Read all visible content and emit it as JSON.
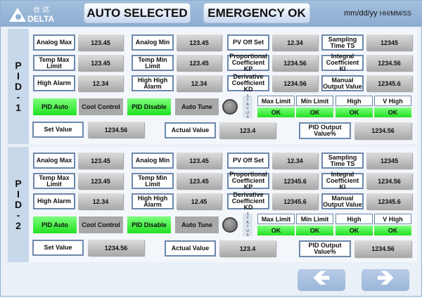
{
  "header": {
    "logo_text": "DELTA",
    "logo_chinese": "台达",
    "auto_button": "AUTO SELECTED",
    "emergency_button": "EMERGENCY OK",
    "date": "mm/dd/yy",
    "time": "HH/MM/SS"
  },
  "colors": {
    "header": "#8fb0d3",
    "green": "#33e833",
    "value_gray": "#b8b8b8",
    "border": "#6d88ad"
  },
  "panels": [
    {
      "title": [
        "P",
        "I",
        "D",
        "-",
        "1"
      ],
      "rows": [
        [
          [
            "Analog Max",
            "123.45"
          ],
          [
            "Analog Min",
            "123.45"
          ],
          [
            "PV Off Set",
            "12.34"
          ],
          [
            "Sampling Time TS",
            "12345"
          ]
        ],
        [
          [
            "Temp Max Limit",
            "123.45"
          ],
          [
            "Temp Min Limit",
            "123.45"
          ],
          [
            "Proportional Coefficient KP",
            "1234.56"
          ],
          [
            "Integral Coefficient KI",
            "1234.56"
          ]
        ],
        [
          [
            "High Alarm",
            "12.34"
          ],
          [
            "High High Alarm",
            "12.34"
          ],
          [
            "Derivative Coefficient KD",
            "1234.56"
          ],
          [
            "Manual Output Value",
            "12345.6"
          ]
        ]
      ],
      "buttons": {
        "pid_auto": "PID Auto",
        "cool_control": "Cool Control",
        "pid_disable": "PID Disable",
        "auto_tune": "Auto Tune"
      },
      "status_label": [
        "S",
        "T",
        "A",
        "T",
        "U",
        "S"
      ],
      "status": [
        {
          "label": "Max Limit",
          "value": "OK"
        },
        {
          "label": "Min Limit",
          "value": "OK"
        },
        {
          "label": "High",
          "value": "OK"
        },
        {
          "label": "V High",
          "value": "OK"
        }
      ],
      "set_value": {
        "label": "Set Value",
        "value": "1234.56"
      },
      "actual_value": {
        "label": "Actual Value",
        "value": "123.4"
      },
      "pid_output": {
        "label": "PID Output Value%",
        "value": "1234.56"
      }
    },
    {
      "title": [
        "P",
        "I",
        "D",
        "-",
        "2"
      ],
      "rows": [
        [
          [
            "Analog Max",
            "123.45"
          ],
          [
            "Analog Min",
            "123.45"
          ],
          [
            "PV Off Set",
            "12.34"
          ],
          [
            "Sampling Time TS",
            "12345"
          ]
        ],
        [
          [
            "Temp Max Limit",
            "123.45"
          ],
          [
            "Temp Min Limit",
            "123.45"
          ],
          [
            "Proportional Coefficient KP",
            "12345.6"
          ],
          [
            "Integral Coefficient KI",
            "1234.56"
          ]
        ],
        [
          [
            "High Alarm",
            "12.34"
          ],
          [
            "High High Alarm",
            "12.45"
          ],
          [
            "Derivative Coefficient KD",
            "12345.6"
          ],
          [
            "Manual Output Value",
            "12345.6"
          ]
        ]
      ],
      "buttons": {
        "pid_auto": "PID Auto",
        "cool_control": "Cool Control",
        "pid_disable": "PID Disable",
        "auto_tune": "Auto Tune"
      },
      "status_label": [
        "S",
        "T",
        "A",
        "T",
        "U",
        "S"
      ],
      "status": [
        {
          "label": "Max Limit",
          "value": "OK"
        },
        {
          "label": "Min Limit",
          "value": "OK"
        },
        {
          "label": "High",
          "value": "OK"
        },
        {
          "label": "V High",
          "value": "OK"
        }
      ],
      "set_value": {
        "label": "Set Value",
        "value": "1234.56"
      },
      "actual_value": {
        "label": "Actual Value",
        "value": "123.4"
      },
      "pid_output": {
        "label": "PID Output Value%",
        "value": "1234.56"
      }
    }
  ],
  "nav": {
    "prev_icon": "arrow-left-icon",
    "next_icon": "arrow-right-icon"
  }
}
